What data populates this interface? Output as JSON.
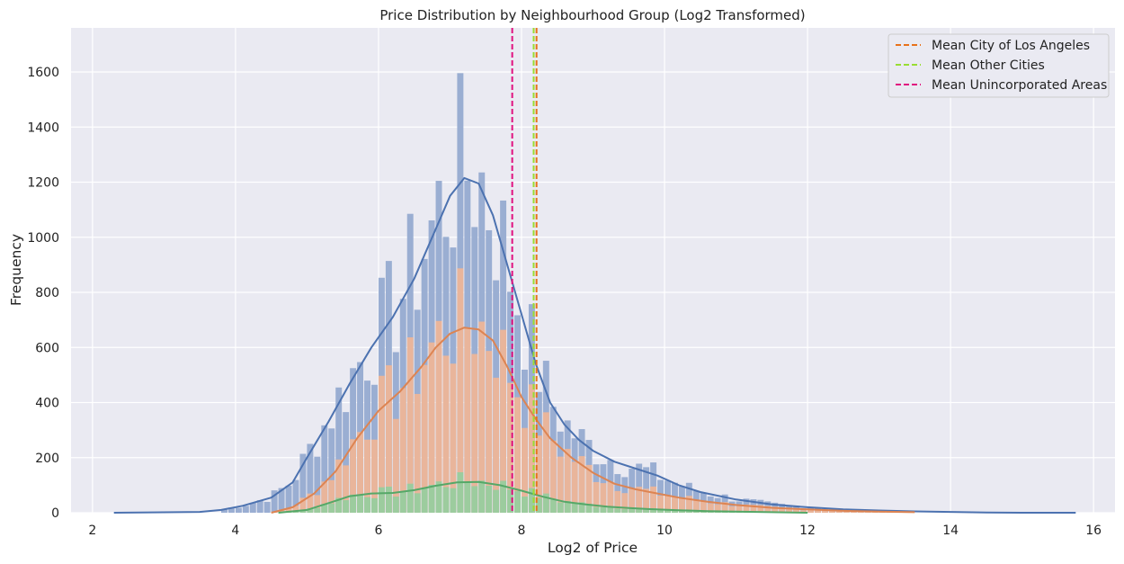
{
  "chart_data": {
    "type": "histogram",
    "title": "Price Distribution by Neighbourhood Group (Log2 Transformed)",
    "xlabel": "Log2 of Price",
    "ylabel": "Frequency",
    "xlim": [
      1.7,
      16.3
    ],
    "ylim": [
      0,
      1760
    ],
    "x_ticks": [
      2,
      4,
      6,
      8,
      10,
      12,
      14,
      16
    ],
    "y_ticks": [
      0,
      200,
      400,
      600,
      800,
      1000,
      1200,
      1400,
      1600
    ],
    "grid": true,
    "legend_position": "top-right",
    "bin_width": 0.1,
    "stacked": true,
    "colors": {
      "background": "#eaeaf2",
      "grid": "#ffffff",
      "bar_city": "#9aaed2",
      "bar_other": "#e9b59b",
      "bar_uninc": "#9ccc9e",
      "kde_city": "#4c72b0",
      "kde_other": "#dd8452",
      "kde_uninc": "#55a868",
      "mean_city": "#e8711a",
      "mean_other": "#99dd33",
      "mean_uninc": "#e0117f"
    },
    "series": [
      {
        "name": "City of Los Angeles",
        "mean": 8.21
      },
      {
        "name": "Other Cities",
        "mean": 8.17
      },
      {
        "name": "Unincorporated Areas",
        "mean": 7.87
      }
    ],
    "mean_lines": [
      {
        "label": "Mean City of Los Angeles",
        "x": 8.21,
        "color": "#e8711a"
      },
      {
        "label": "Mean Other Cities",
        "x": 8.17,
        "color": "#99dd33"
      },
      {
        "label": "Mean Unincorporated Areas",
        "x": 7.87,
        "color": "#e0117f"
      }
    ],
    "kde_curves": [
      {
        "series": "total",
        "color": "#4c72b0",
        "x": [
          2.3,
          3.5,
          3.8,
          4.1,
          4.5,
          4.8,
          5.0,
          5.3,
          5.6,
          5.9,
          6.2,
          6.5,
          6.8,
          7.0,
          7.2,
          7.4,
          7.6,
          7.8,
          8.0,
          8.2,
          8.4,
          8.6,
          8.8,
          9.0,
          9.3,
          9.6,
          9.9,
          10.2,
          10.5,
          11.0,
          11.5,
          12.0,
          12.5,
          13.0,
          13.5,
          14.0,
          14.5,
          15.0,
          15.5,
          15.75
        ],
        "y": [
          0,
          3,
          10,
          25,
          55,
          110,
          200,
          330,
          470,
          600,
          710,
          850,
          1030,
          1150,
          1215,
          1195,
          1080,
          900,
          720,
          540,
          400,
          320,
          265,
          225,
          185,
          160,
          135,
          100,
          75,
          48,
          30,
          20,
          12,
          8,
          5,
          3,
          1,
          0,
          0,
          0
        ]
      },
      {
        "series": "City of Los Angeles",
        "color": "#dd8452",
        "x": [
          4.5,
          4.8,
          5.1,
          5.4,
          5.7,
          6.0,
          6.3,
          6.6,
          6.8,
          7.0,
          7.2,
          7.4,
          7.6,
          7.8,
          8.0,
          8.2,
          8.4,
          8.7,
          9.0,
          9.3,
          9.6,
          9.9,
          10.2,
          10.6,
          11.0,
          11.5,
          12.0,
          12.5,
          13.0,
          13.5
        ],
        "y": [
          0,
          20,
          70,
          150,
          270,
          370,
          440,
          530,
          600,
          650,
          672,
          665,
          625,
          530,
          420,
          340,
          270,
          200,
          145,
          105,
          85,
          70,
          55,
          40,
          28,
          18,
          12,
          7,
          4,
          2
        ]
      },
      {
        "series": "Unincorporated Areas",
        "color": "#55a868",
        "x": [
          4.6,
          5.0,
          5.3,
          5.6,
          5.9,
          6.2,
          6.5,
          6.8,
          7.1,
          7.4,
          7.7,
          8.0,
          8.3,
          8.6,
          8.9,
          9.2,
          9.5,
          9.8,
          10.2,
          10.6,
          11.0,
          11.5,
          12.0
        ],
        "y": [
          0,
          10,
          35,
          60,
          70,
          72,
          82,
          98,
          110,
          112,
          100,
          80,
          58,
          40,
          30,
          22,
          17,
          13,
          9,
          6,
          4,
          2,
          0
        ]
      }
    ]
  },
  "legend": {
    "items": [
      {
        "label": "Mean City of Los Angeles",
        "color": "#e8711a"
      },
      {
        "label": "Mean Other Cities",
        "color": "#99dd33"
      },
      {
        "label": "Mean Unincorporated Areas",
        "color": "#e0117f"
      }
    ]
  }
}
